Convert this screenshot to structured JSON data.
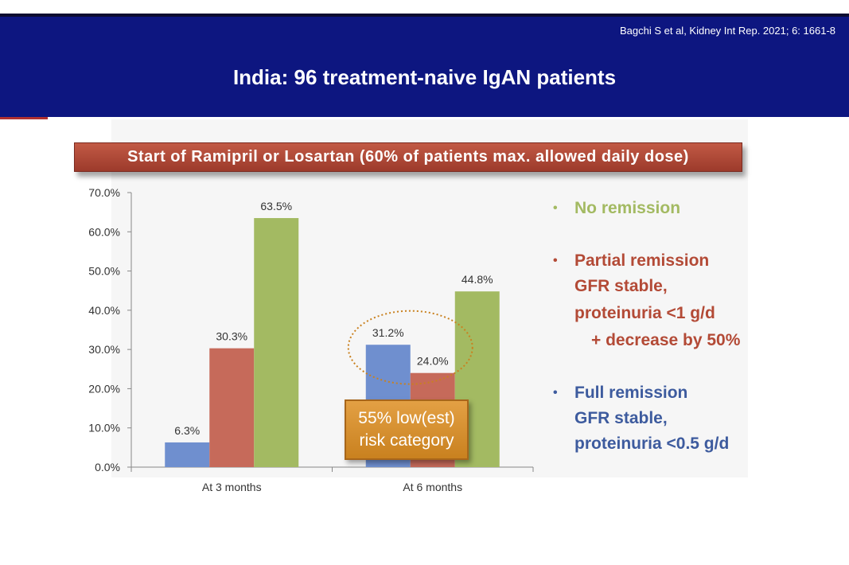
{
  "header": {
    "citation": "Bagchi S et al, Kidney Int Rep. 2021; 6: 1661-8",
    "title": "India: 96 treatment-naive IgAN patients"
  },
  "banner": {
    "text": "Start of Ramipril or Losartan (60% of patients max. allowed daily dose)"
  },
  "colors": {
    "full_remission": "#6f8fcf",
    "partial_remission": "#c66a5a",
    "no_remission": "#a3ba62",
    "header_bg": "#0d1680",
    "banner_bg": "#a8402f",
    "risk_box_bg": "#d68f2c"
  },
  "chart_data": {
    "type": "bar",
    "categories": [
      "At 3 months",
      "At 6 months"
    ],
    "series": [
      {
        "name": "Full remission",
        "values": [
          6.3,
          31.2
        ],
        "labels": [
          "6.3%",
          "31.2%"
        ]
      },
      {
        "name": "Partial remission",
        "values": [
          30.3,
          24.0
        ],
        "labels": [
          "30.3%",
          "24.0%"
        ]
      },
      {
        "name": "No remission",
        "values": [
          63.5,
          44.8
        ],
        "labels": [
          "63.5%",
          "44.8%"
        ]
      }
    ],
    "yticks": [
      "0.0%",
      "10.0%",
      "20.0%",
      "30.0%",
      "40.0%",
      "50.0%",
      "60.0%",
      "70.0%"
    ],
    "ylim": [
      0,
      70
    ],
    "grid": false,
    "legend_position": "right"
  },
  "annotation": {
    "line1": "55% low(est)",
    "line2": "risk category"
  },
  "legend": {
    "no_remission": {
      "bullet": "•",
      "title": "No remission"
    },
    "partial_remission": {
      "bullet": "•",
      "title": "Partial remission",
      "line2": "GFR stable,",
      "line3": "proteinuria <1 g/d",
      "line4": "+ decrease by 50%"
    },
    "full_remission": {
      "bullet": "•",
      "title": "Full remission",
      "line2": "GFR stable,",
      "line3": "proteinuria <0.5 g/d"
    }
  }
}
